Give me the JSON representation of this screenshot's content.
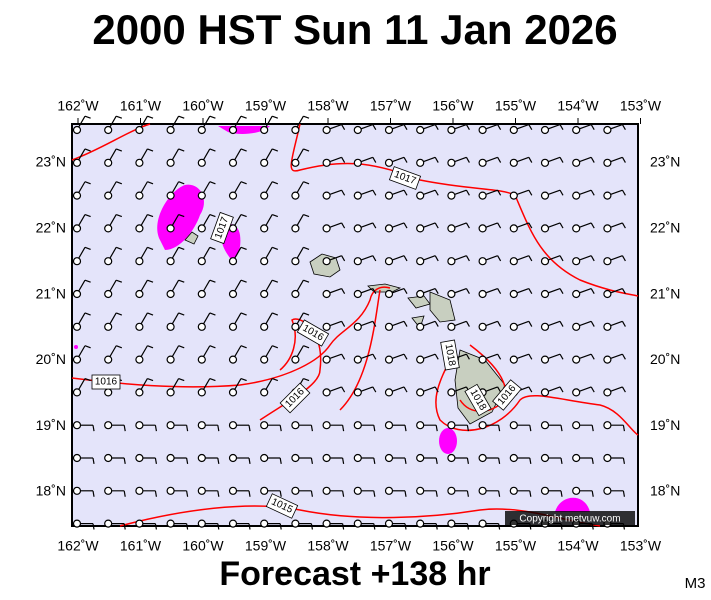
{
  "header": {
    "title": "2000 HST Sun 11 Jan 2026"
  },
  "footer": {
    "forecast": "Forecast +138 hr",
    "model": "M3"
  },
  "map": {
    "lon_labels": [
      "162˚W",
      "161˚W",
      "160˚W",
      "159˚W",
      "158˚W",
      "157˚W",
      "156˚W",
      "155˚W",
      "154˚W",
      "153˚W"
    ],
    "lat_labels": [
      "23˚N",
      "22˚N",
      "21˚N",
      "20˚N",
      "19˚N",
      "18˚N"
    ],
    "isobar_labels": [
      "1017",
      "1017",
      "1016",
      "1016",
      "1016",
      "1018",
      "1018",
      "1016",
      "1015"
    ],
    "copyright": "Copyright metvuw.com"
  }
}
